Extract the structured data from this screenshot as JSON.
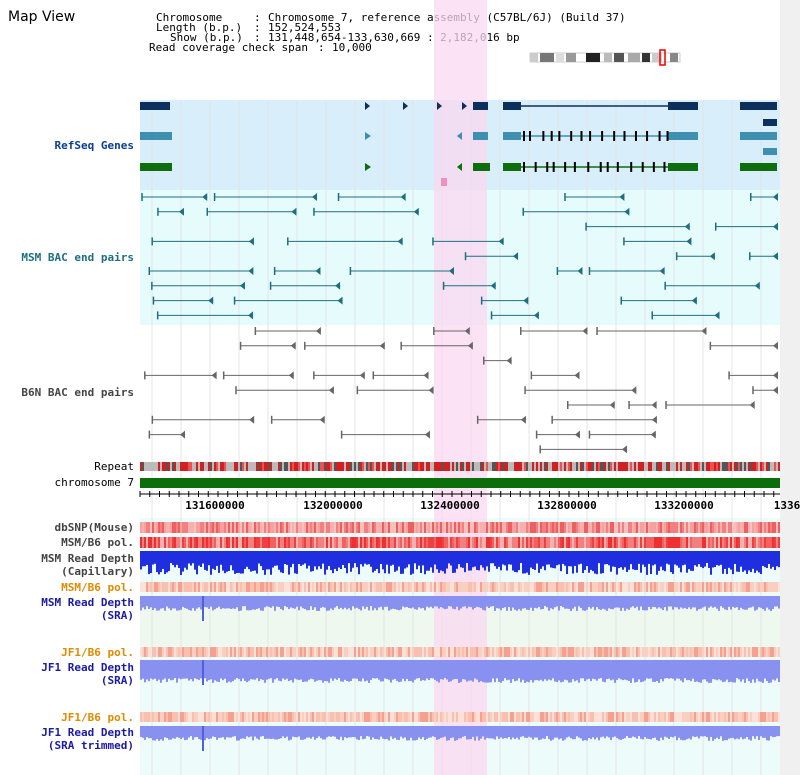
{
  "title": "Map View",
  "header": {
    "chromosome_label": "Chromosome",
    "chromosome_value": "Chromosome 7, reference assembly (C57BL/6J) (Build 37)",
    "length_label": "Length (b.p.)",
    "length_value": "152,524,553",
    "show_label": "Show (b.p.)",
    "show_value": "131,448,654-133,630,669 : 2,182,016 bp",
    "coverage_label": "Read coverage check span",
    "coverage_value": "10,000"
  },
  "tracks": {
    "refseq": "RefSeq Genes",
    "msm_bac": "MSM BAC end pairs",
    "b6n_bac": "B6N BAC end pairs",
    "repeat": "Repeat",
    "chromosome": "chromosome 7",
    "dbsnp": "dbSNP(Mouse)",
    "msm_b6_pol_1": "MSM/B6 pol.",
    "msm_capillary_1": "MSM Read Depth",
    "msm_capillary_2": "(Capillary)",
    "msm_b6_pol_2": "MSM/B6 pol.",
    "msm_sra_1": "MSM Read Depth",
    "msm_sra_2": "(SRA)",
    "jf1_b6_pol_1": "JF1/B6 pol.",
    "jf1_sra_1": "JF1 Read Depth",
    "jf1_sra_2": "(SRA)",
    "jf1_b6_pol_2": "JF1/B6 pol.",
    "jf1_trim_1": "JF1 Read Depth",
    "jf1_trim_2": "(SRA trimmed)"
  },
  "axis_ticks": [
    "131600000",
    "132000000",
    "132400000",
    "132800000",
    "133200000",
    "1336"
  ],
  "colors": {
    "refseq_bg": "#d8eefa",
    "bac_bg": "#e6fbfb",
    "highlight": "#f9d8f0",
    "gene_dark": "#0c2f5c",
    "gene_mid": "#3f8fb0",
    "gene_green": "#0e6e0e",
    "chromosome": "#0b6e0b",
    "depth_blue": "#1f2fe0",
    "depth_light": "#8890f0"
  }
}
